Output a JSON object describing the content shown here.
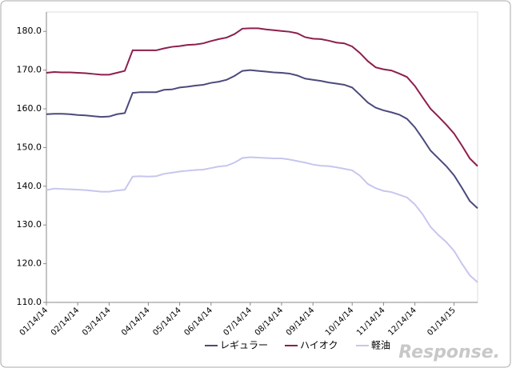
{
  "chart_data": {
    "type": "line",
    "categories": [
      "01/14/14",
      null,
      null,
      null,
      "02/14/14",
      null,
      null,
      null,
      "03/14/14",
      null,
      null,
      null,
      null,
      "04/14/14",
      null,
      null,
      null,
      "05/14/14",
      null,
      null,
      null,
      "06/14/14",
      null,
      null,
      null,
      null,
      "07/14/14",
      null,
      null,
      null,
      "08/14/14",
      null,
      null,
      null,
      "09/14/14",
      null,
      null,
      null,
      null,
      "10/14/14",
      null,
      null,
      null,
      "11/14/14",
      null,
      null,
      null,
      "12/14/14",
      null,
      null,
      null,
      null,
      "01/14/15",
      null,
      null,
      null
    ],
    "series": [
      {
        "name": "レギュラー",
        "color": "#4b4a7c",
        "values": [
          158.6,
          158.7,
          158.7,
          158.6,
          158.4,
          158.3,
          158.1,
          157.9,
          158.0,
          158.6,
          158.9,
          164.1,
          164.3,
          164.3,
          164.3,
          164.9,
          165.0,
          165.5,
          165.7,
          166.0,
          166.2,
          166.7,
          167.0,
          167.5,
          168.5,
          169.8,
          170.0,
          169.8,
          169.6,
          169.4,
          169.3,
          169.1,
          168.6,
          167.8,
          167.5,
          167.2,
          166.8,
          166.5,
          166.2,
          165.5,
          163.6,
          161.6,
          160.3,
          159.6,
          159.1,
          158.5,
          157.4,
          155.2,
          152.3,
          149.2,
          147.2,
          145.2,
          142.8,
          139.6,
          136.2,
          134.3
        ]
      },
      {
        "name": "ハイオク",
        "color": "#8c1f4e",
        "values": [
          169.3,
          169.5,
          169.4,
          169.4,
          169.3,
          169.2,
          169.0,
          168.8,
          168.8,
          169.3,
          169.8,
          175.1,
          175.1,
          175.1,
          175.1,
          175.6,
          176.0,
          176.2,
          176.5,
          176.6,
          176.9,
          177.5,
          178.0,
          178.4,
          179.3,
          180.7,
          180.8,
          180.8,
          180.5,
          180.3,
          180.1,
          179.9,
          179.5,
          178.5,
          178.1,
          178.0,
          177.6,
          177.1,
          176.9,
          176.1,
          174.4,
          172.3,
          170.7,
          170.2,
          169.9,
          169.1,
          168.2,
          165.9,
          162.9,
          160.0,
          158.0,
          155.9,
          153.6,
          150.5,
          147.2,
          145.2
        ]
      },
      {
        "name": "軽油",
        "color": "#c6c6ef",
        "values": [
          139.0,
          139.4,
          139.3,
          139.2,
          139.1,
          139.0,
          138.8,
          138.6,
          138.6,
          138.9,
          139.1,
          142.5,
          142.6,
          142.5,
          142.6,
          143.2,
          143.5,
          143.8,
          144.0,
          144.2,
          144.3,
          144.7,
          145.1,
          145.3,
          146.1,
          147.3,
          147.5,
          147.4,
          147.3,
          147.2,
          147.2,
          146.9,
          146.5,
          146.1,
          145.6,
          145.3,
          145.2,
          144.9,
          144.5,
          144.1,
          142.7,
          140.6,
          139.5,
          138.8,
          138.5,
          137.8,
          137.1,
          135.3,
          132.7,
          129.5,
          127.4,
          125.6,
          123.3,
          120.0,
          117.0,
          115.2
        ]
      }
    ],
    "ylim": [
      110,
      185
    ],
    "yticks": [
      {
        "value": 110,
        "label": "110.0"
      },
      {
        "value": 120,
        "label": "120.0"
      },
      {
        "value": 130,
        "label": "130.0"
      },
      {
        "value": 140,
        "label": "140.0"
      },
      {
        "value": 150,
        "label": "150.0"
      },
      {
        "value": 160,
        "label": "160.0"
      },
      {
        "value": 170,
        "label": "170.0"
      },
      {
        "value": 180,
        "label": "180.0"
      }
    ],
    "legend": "bottom",
    "watermark": "Response."
  }
}
